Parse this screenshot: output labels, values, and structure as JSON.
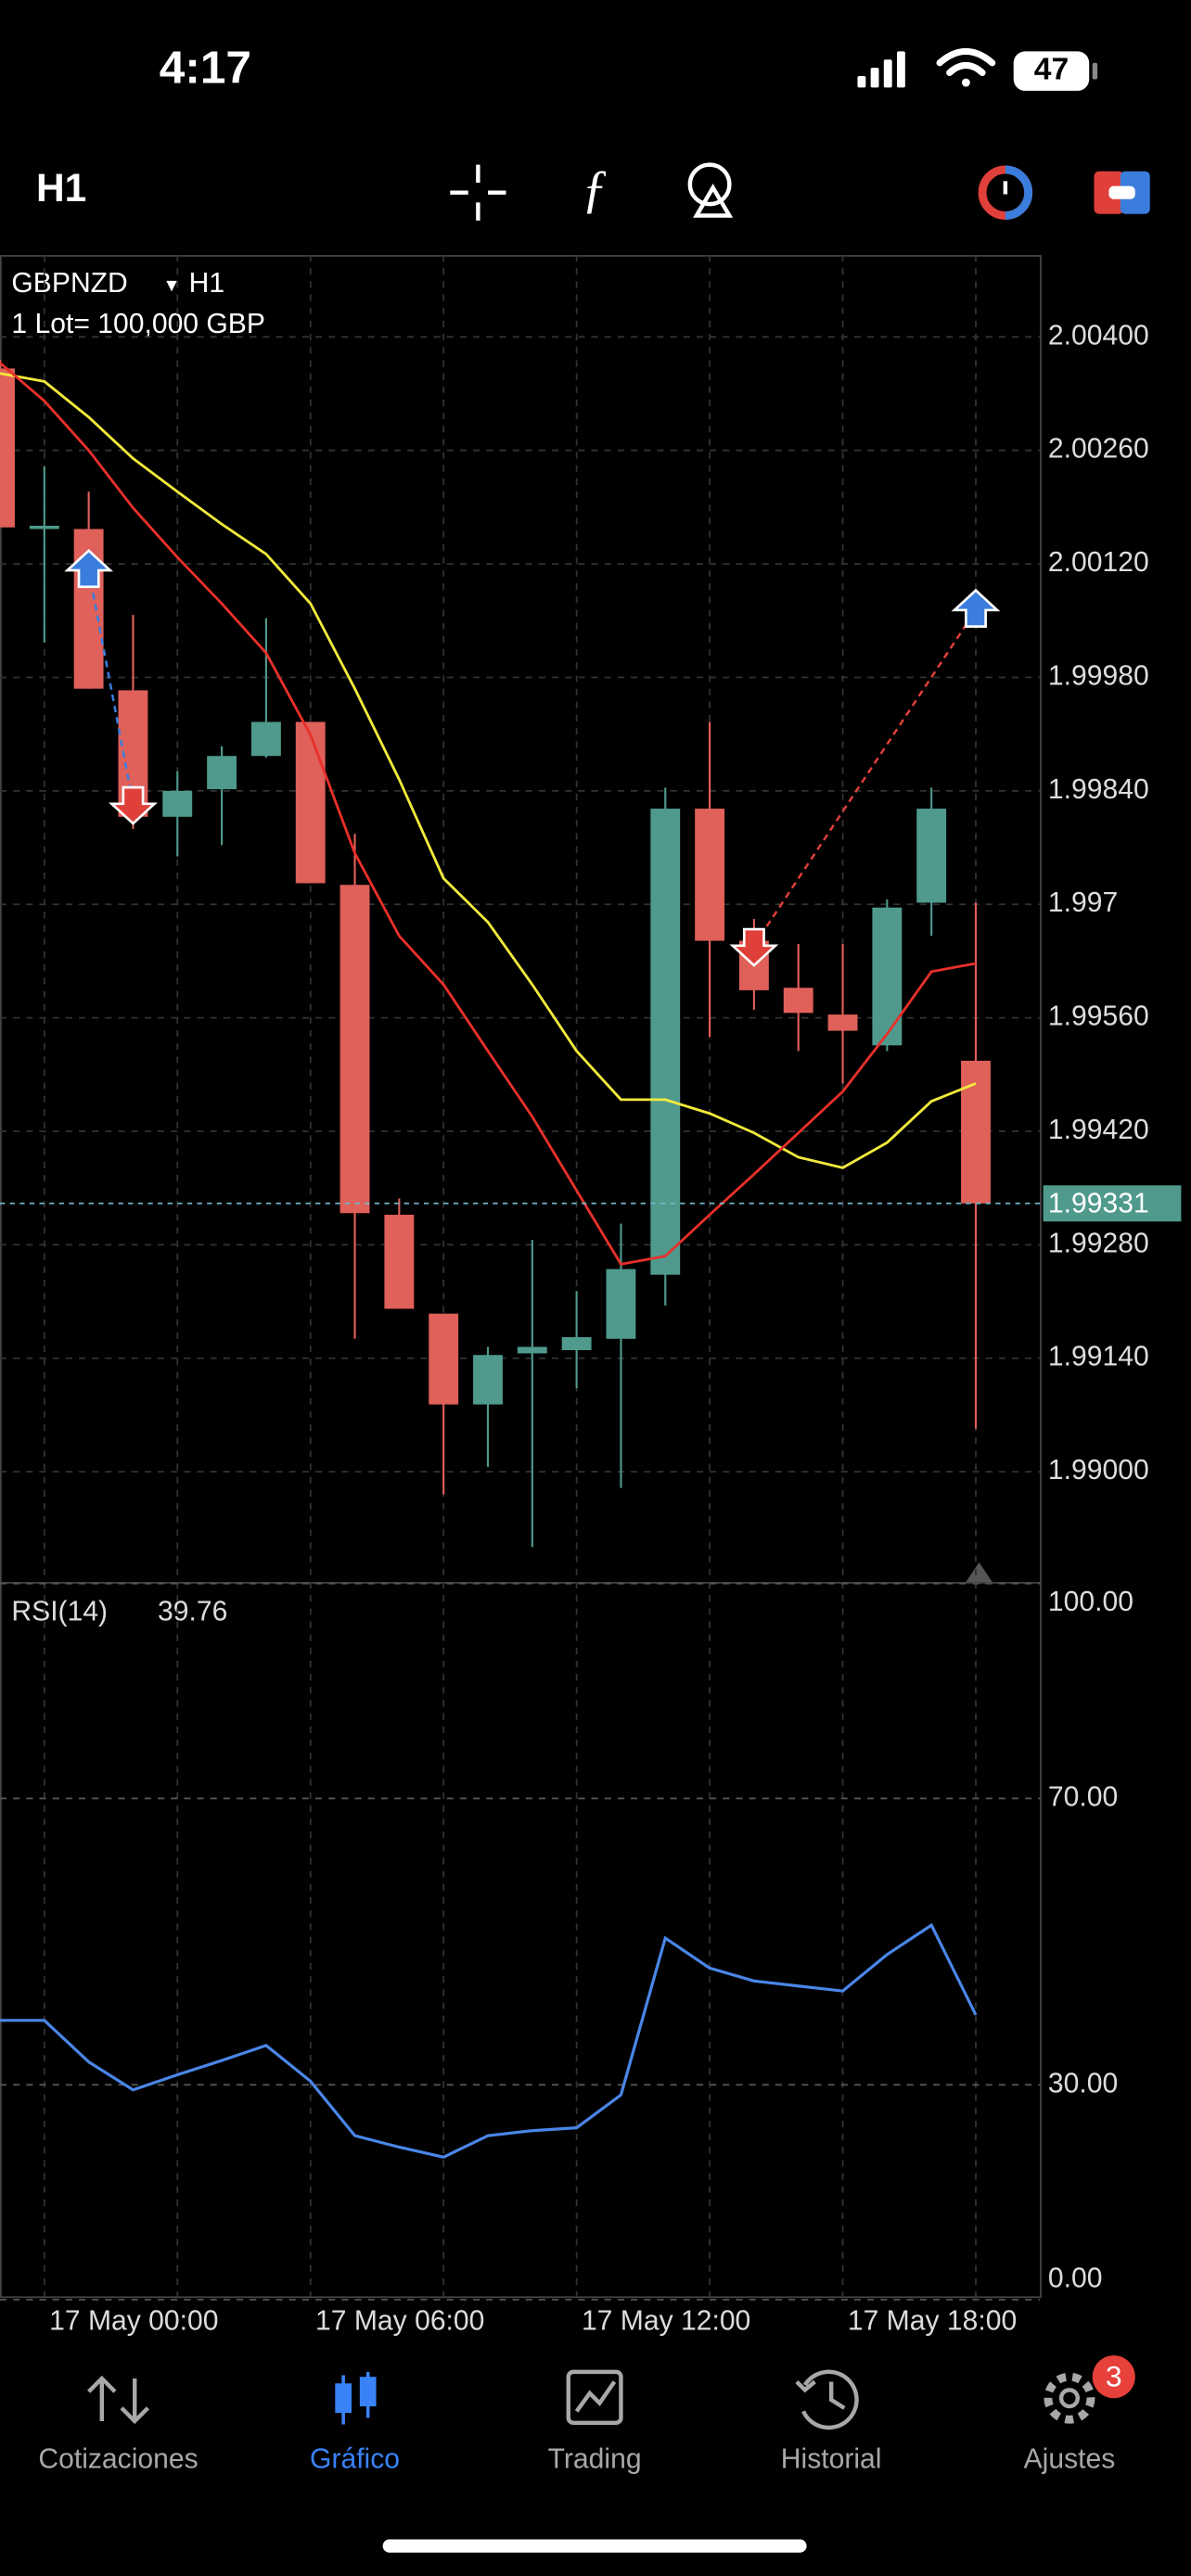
{
  "status_bar": {
    "time": "4:17",
    "battery": "47"
  },
  "toolbar": {
    "timeframe": "H1"
  },
  "chart_data": [
    {
      "type": "candlestick",
      "symbol": "GBPNZD",
      "timeframe": "H1",
      "subtitle": "1 Lot= 100,000 GBP",
      "categories": [
        null,
        "17 May 00:00",
        null,
        null,
        null,
        null,
        null,
        "17 May 06:00",
        null,
        null,
        null,
        null,
        null,
        "17 May 12:00",
        null,
        null,
        null,
        null,
        null,
        "17 May 18:00",
        null,
        null,
        null
      ],
      "open": [
        2.00361,
        2.00163,
        2.00163,
        1.99964,
        1.99808,
        1.99842,
        1.99883,
        1.99925,
        1.99724,
        1.99317,
        1.99195,
        1.99083,
        1.99146,
        1.9915,
        1.99164,
        1.99243,
        1.99818,
        1.99655,
        1.99597,
        1.99564,
        1.99526,
        1.99702,
        1.99507
      ],
      "high": [
        2.00372,
        2.0024,
        2.00209,
        2.00057,
        1.99864,
        1.99895,
        2.00053,
        1.99925,
        1.99787,
        1.99337,
        1.99195,
        1.99154,
        1.99286,
        1.99223,
        1.99306,
        1.99844,
        1.99925,
        1.99682,
        1.99651,
        1.99651,
        1.99706,
        1.99844,
        1.99702
      ],
      "low": [
        2.00165,
        2.00023,
        1.99966,
        1.99793,
        1.99759,
        1.99773,
        1.99881,
        1.99726,
        1.99164,
        1.99201,
        1.98972,
        1.99006,
        1.98907,
        1.99103,
        1.9898,
        1.99205,
        1.99536,
        1.9957,
        1.99519,
        1.99479,
        1.99519,
        1.99661,
        1.99053
      ],
      "close": [
        2.00165,
        2.00167,
        1.99966,
        1.99808,
        1.9984,
        1.99883,
        1.99925,
        1.99726,
        1.99319,
        1.99201,
        1.99083,
        1.99144,
        1.99154,
        1.99166,
        1.9925,
        1.99818,
        1.99655,
        1.99594,
        1.99566,
        1.99544,
        1.99696,
        1.99818,
        1.99331
      ],
      "up_color": "#4f9a8d",
      "down_color": "#e0605a",
      "moving_averages": [
        {
          "color": "#f2ea3c",
          "values": [
            2.00355,
            2.00345,
            2.00301,
            2.0025,
            2.00209,
            2.00169,
            2.00132,
            2.00071,
            1.99966,
            1.99854,
            1.99732,
            1.99678,
            1.99601,
            1.99519,
            1.99459,
            1.99459,
            1.99442,
            1.99418,
            1.99388,
            1.99375,
            1.99406,
            1.99457,
            1.99479
          ]
        },
        {
          "color": "#e8302a",
          "values": [
            2.00368,
            2.00321,
            2.0026,
            2.00189,
            2.00128,
            2.00071,
            2.0001,
            1.99909,
            1.99763,
            1.99661,
            1.99601,
            1.99519,
            1.99438,
            1.99347,
            1.99256,
            1.99266,
            1.99317,
            1.99367,
            1.99418,
            1.99469,
            1.9954,
            1.99617,
            1.99627
          ]
        }
      ],
      "trade_markers": [
        {
          "index": 2,
          "price": 2.00112,
          "direction": "up",
          "color": "#3b7ddd"
        },
        {
          "index": 3,
          "price": 1.99824,
          "direction": "down",
          "color": "#e0403a"
        },
        {
          "index": 17,
          "price": 1.99649,
          "direction": "down",
          "color": "#e0403a"
        },
        {
          "index": 22,
          "price": 2.00063,
          "direction": "up",
          "color": "#3b7ddd"
        }
      ],
      "current_price": 1.99331,
      "current_price_color": "#4f9a8d",
      "ylim": [
        1.98864,
        2.00501
      ],
      "yticks": [
        {
          "value": 2.004,
          "label": "2.00400"
        },
        {
          "value": 2.0026,
          "label": "2.00260"
        },
        {
          "value": 2.0012,
          "label": "2.00120"
        },
        {
          "value": 1.9998,
          "label": "1.99980"
        },
        {
          "value": 1.9984,
          "label": "1.99840"
        },
        1.997,
        {
          "value": 1.9956,
          "label": "1.99560"
        },
        {
          "value": 1.9942,
          "label": "1.99420"
        },
        {
          "value": 1.9928,
          "label": "1.99280"
        },
        {
          "value": 1.9914,
          "label": "1.99140"
        },
        {
          "value": 1.99,
          "label": "1.99000"
        }
      ],
      "grid": true
    },
    {
      "type": "line",
      "series": [
        {
          "name": "RSI(14)",
          "color": "#4a86e8",
          "values": [
            39.0,
            39.0,
            33.2,
            29.3,
            31.4,
            33.4,
            35.5,
            30.5,
            22.9,
            21.3,
            19.9,
            22.9,
            23.6,
            24.0,
            28.6,
            50.5,
            46.3,
            44.5,
            43.8,
            43.1,
            48.2,
            52.3,
            39.76
          ]
        }
      ],
      "ylim": [
        0,
        100
      ],
      "yticks": [
        {
          "value": 100,
          "label": "100.00"
        },
        {
          "value": 70,
          "label": "70.00"
        },
        {
          "value": 30,
          "label": "30.00"
        },
        {
          "value": 0,
          "label": "0.00"
        }
      ],
      "grid": true
    }
  ],
  "tabs": [
    {
      "label": "Cotizaciones"
    },
    {
      "label": "Gráfico"
    },
    {
      "label": "Trading"
    },
    {
      "label": "Historial"
    },
    {
      "label": "Ajustes",
      "badge": 3
    }
  ]
}
